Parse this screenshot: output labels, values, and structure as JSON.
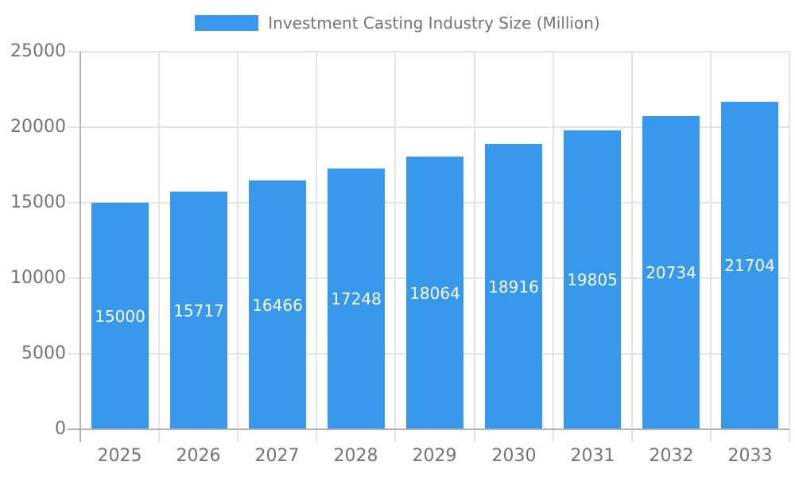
{
  "legend": {
    "label": "Investment Casting Industry Size (Million)"
  },
  "chart_data": {
    "type": "bar",
    "title": "Investment Casting Industry Size (Million)",
    "categories": [
      "2025",
      "2026",
      "2027",
      "2028",
      "2029",
      "2030",
      "2031",
      "2032",
      "2033"
    ],
    "series": [
      {
        "name": "Investment Casting Industry Size (Million)",
        "values": [
          15000,
          15717,
          16466,
          17248,
          18064,
          18916,
          19805,
          20734,
          21704
        ]
      }
    ],
    "value_labels": [
      "15000",
      "15717",
      "16466",
      "17248",
      "18064",
      "18916",
      "19805",
      "20734",
      "21704"
    ],
    "xlabel": "",
    "ylabel": "",
    "ylim": [
      0,
      25000
    ],
    "yticks": [
      0,
      5000,
      10000,
      15000,
      20000,
      25000
    ],
    "ytick_labels": [
      "0",
      "5000",
      "10000",
      "15000",
      "20000",
      "25000"
    ],
    "grid": true,
    "legend_position": "top",
    "colors": {
      "bar": "#3898ec",
      "bar_value_label": "#ffffff",
      "axis_line": "#b1b1b1",
      "gridline": "#e3e3e3",
      "tick_label": "#737373",
      "legend_label": "#737373",
      "background": "#ffffff"
    }
  }
}
